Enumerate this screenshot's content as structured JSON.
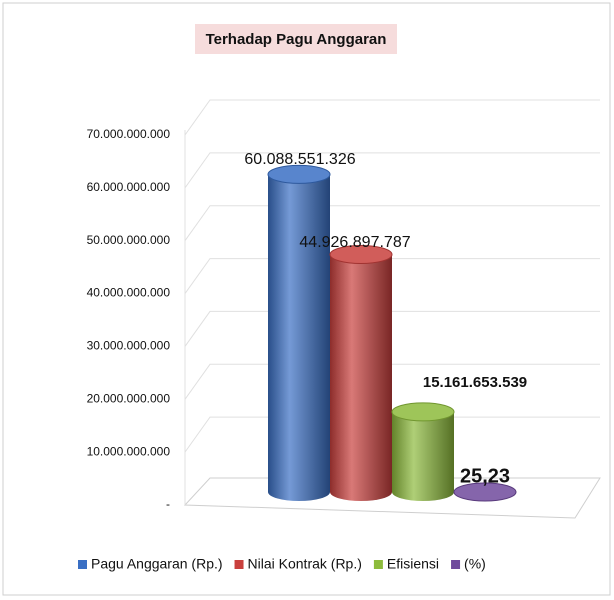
{
  "chart_data": {
    "type": "bar",
    "title": "Terhadap Pagu Anggaran",
    "categories": [
      null
    ],
    "series": [
      {
        "name": "Pagu Anggaran (Rp.)",
        "color": "#3a6fc4",
        "values": [
          60088551326
        ],
        "value_labels": [
          "60.088.551.326"
        ]
      },
      {
        "name": "Nilai Kontrak (Rp.)",
        "color": "#c9403d",
        "values": [
          44926897787
        ],
        "value_labels": [
          "44.926.897.787"
        ]
      },
      {
        "name": "Efisiensi",
        "color": "#8dbb3c",
        "values": [
          15161653539
        ],
        "value_labels": [
          "15.161.653.539"
        ]
      },
      {
        "name": "(%)",
        "color": "#6f4a9c",
        "values": [
          25.23
        ],
        "value_labels": [
          "25,23"
        ]
      }
    ],
    "ylim": [
      0,
      70000000000
    ],
    "yticks": [
      {
        "value": 0,
        "label": "-"
      },
      {
        "value": 10000000000,
        "label": "10.000.000.000"
      },
      {
        "value": 20000000000,
        "label": "20.000.000.000"
      },
      {
        "value": 30000000000,
        "label": "30.000.000.000"
      },
      {
        "value": 40000000000,
        "label": "40.000.000.000"
      },
      {
        "value": 50000000000,
        "label": "50.000.000.000"
      },
      {
        "value": 60000000000,
        "label": "60.000.000.000"
      },
      {
        "value": 70000000000,
        "label": "70.000.000.000"
      }
    ],
    "grid": true,
    "legend": "bottom"
  }
}
